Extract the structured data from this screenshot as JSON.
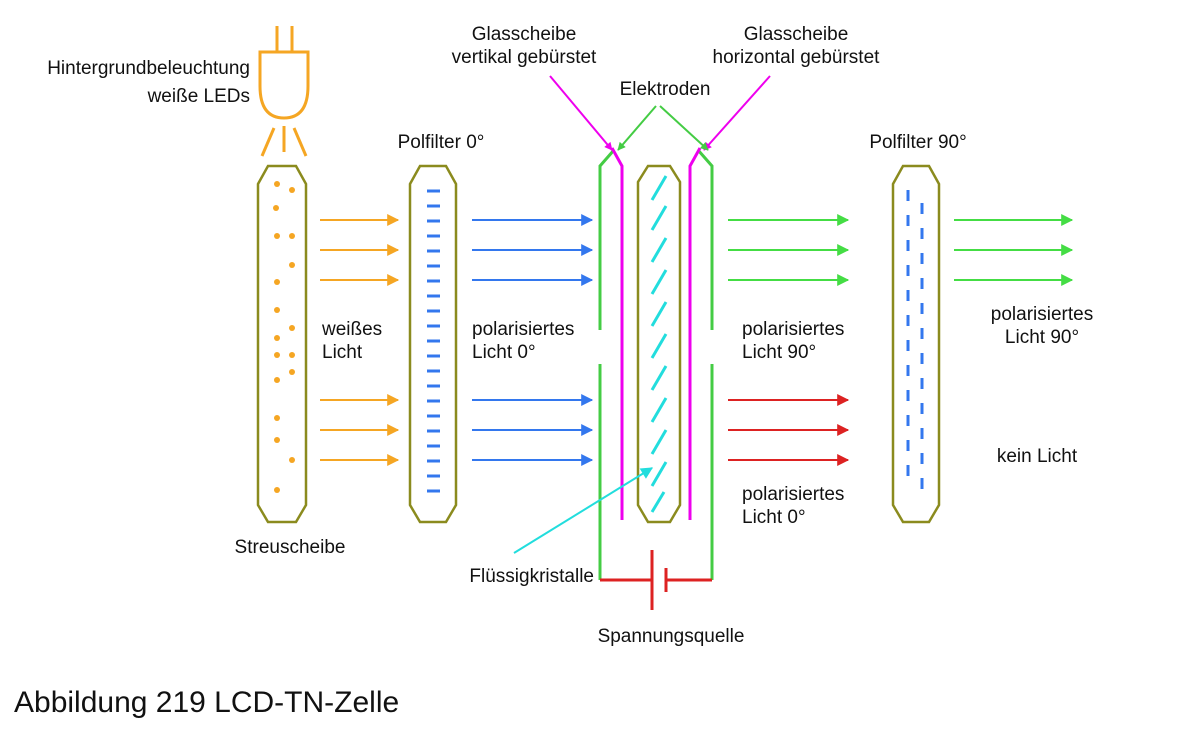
{
  "labels": {
    "backlight_line1": "Hintergrundbeleuchtung",
    "backlight_line2": "weiße LEDs",
    "diffuser": "Streuscheibe",
    "polfilter_0": "Polfilter 0°",
    "glass_vertical_line1": "Glasscheibe",
    "glass_vertical_line2": "vertikal gebürstet",
    "glass_horizontal_line1": "Glasscheibe",
    "glass_horizontal_line2": "horizontal gebürstet",
    "electrodes": "Elektroden",
    "polfilter_90": "Polfilter 90°",
    "white_light_line1": "weißes",
    "white_light_line2": "Licht",
    "pol_light_0_line1": "polarisiertes",
    "pol_light_0_line2": "Licht 0°",
    "pol_light_90_line1": "polarisiertes",
    "pol_light_90_line2": "Licht 90°",
    "pol_light_out_line1": "polarisiertes",
    "pol_light_out_line2": "Licht 90°",
    "pol_light_0b_line1": "polarisiertes",
    "pol_light_0b_line2": "Licht 0°",
    "no_light": "kein Licht",
    "liquid_crystals": "Flüssigkristalle",
    "voltage_source": "Spannungsquelle"
  },
  "caption": "Abbildung 219 LCD-TN-Zelle",
  "colors": {
    "led": "#f5a623",
    "diffuser_outline": "#8b8b1e",
    "polarizer_marks": "#3377ee",
    "light_white": "#f5a623",
    "light_pol_0": "#3377ee",
    "light_pol_90": "#44dd44",
    "light_blocked": "#dd2222",
    "glass_plate": "#ee00ee",
    "electrode": "#44cc44",
    "liquid_crystal": "#22dddd",
    "voltage_source": "#dd2222"
  }
}
